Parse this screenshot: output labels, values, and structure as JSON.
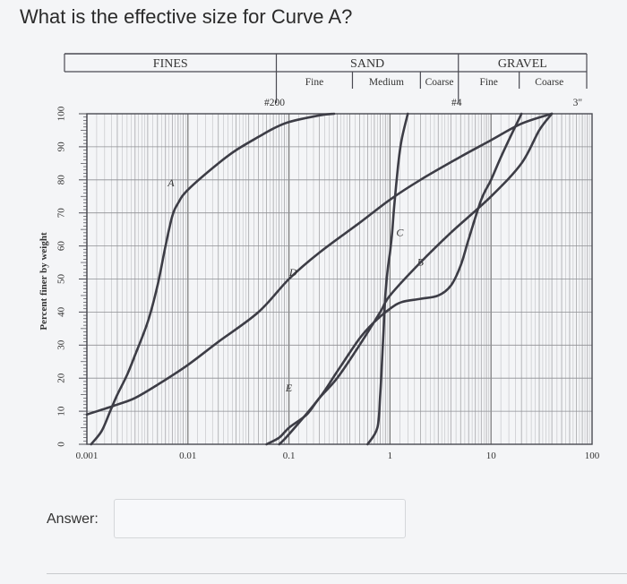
{
  "question": "What is the effective size for Curve A?",
  "answer": {
    "label": "Answer:",
    "value": "",
    "placeholder": ""
  },
  "chart_data": {
    "type": "line",
    "title": "",
    "xlabel": "",
    "ylabel": "Percent finer by weight",
    "x_scale": "log",
    "xlim": [
      0.001,
      100
    ],
    "ylim": [
      0,
      100
    ],
    "x_ticks": [
      {
        "value": 0.001,
        "label": "0.001"
      },
      {
        "value": 0.01,
        "label": "0.01"
      },
      {
        "value": 0.1,
        "label": "0.1"
      },
      {
        "value": 1,
        "label": "1"
      },
      {
        "value": 10,
        "label": "10"
      },
      {
        "value": 100,
        "label": "100"
      }
    ],
    "y_ticks": [
      {
        "value": 0,
        "label": "0"
      },
      {
        "value": 10,
        "label": "10"
      },
      {
        "value": 20,
        "label": "20"
      },
      {
        "value": 30,
        "label": "30"
      },
      {
        "value": 40,
        "label": "40"
      },
      {
        "value": 50,
        "label": "50"
      },
      {
        "value": 60,
        "label": "60"
      },
      {
        "value": 70,
        "label": "70"
      },
      {
        "value": 80,
        "label": "80"
      },
      {
        "value": 90,
        "label": "90"
      },
      {
        "value": 100,
        "label": "100"
      }
    ],
    "grid": true,
    "soil_bands": [
      {
        "label": "FINES",
        "from": 0.001,
        "to": 0.075
      },
      {
        "label": "SAND",
        "from": 0.075,
        "to": 4.75,
        "sub": [
          {
            "label": "Fine",
            "from": 0.075,
            "to": 0.425
          },
          {
            "label": "Medium",
            "from": 0.425,
            "to": 2.0
          },
          {
            "label": "Coarse",
            "from": 2.0,
            "to": 4.75
          }
        ]
      },
      {
        "label": "GRAVEL",
        "from": 4.75,
        "to": 75,
        "sub": [
          {
            "label": "Fine",
            "from": 4.75,
            "to": 19
          },
          {
            "label": "Coarse",
            "from": 19,
            "to": 75
          }
        ]
      }
    ],
    "sieve_marks": [
      {
        "label": "#200",
        "value": 0.075
      },
      {
        "label": "#4",
        "value": 4.75
      },
      {
        "label": "3\"",
        "value": 75
      }
    ],
    "series": [
      {
        "name": "A",
        "label_at": [
          0.0068,
          78
        ],
        "points": [
          [
            0.0011,
            0
          ],
          [
            0.0014,
            4
          ],
          [
            0.0017,
            10
          ],
          [
            0.002,
            15
          ],
          [
            0.0025,
            21
          ],
          [
            0.003,
            27
          ],
          [
            0.004,
            37
          ],
          [
            0.005,
            48
          ],
          [
            0.006,
            60
          ],
          [
            0.007,
            69
          ],
          [
            0.008,
            73
          ],
          [
            0.01,
            77
          ],
          [
            0.02,
            85
          ],
          [
            0.03,
            89
          ],
          [
            0.05,
            93
          ],
          [
            0.07,
            95.5
          ],
          [
            0.1,
            97.5
          ],
          [
            0.2,
            99.5
          ],
          [
            0.28,
            100
          ]
        ]
      },
      {
        "name": "B",
        "label_at": [
          2.0,
          54
        ],
        "points": [
          [
            0.08,
            0
          ],
          [
            0.1,
            3
          ],
          [
            0.2,
            14
          ],
          [
            0.3,
            22
          ],
          [
            0.5,
            32
          ],
          [
            0.7,
            37
          ],
          [
            1.0,
            41
          ],
          [
            1.3,
            43
          ],
          [
            2.0,
            44
          ],
          [
            3.0,
            45
          ],
          [
            4.0,
            48
          ],
          [
            5.0,
            54
          ],
          [
            6.0,
            62
          ],
          [
            8.0,
            74
          ],
          [
            10,
            80
          ],
          [
            13,
            88
          ],
          [
            20,
            100
          ]
        ]
      },
      {
        "name": "C",
        "label_at": [
          1.25,
          63
        ],
        "points": [
          [
            0.6,
            0
          ],
          [
            0.75,
            5
          ],
          [
            0.8,
            15
          ],
          [
            0.85,
            30
          ],
          [
            0.9,
            45
          ],
          [
            0.95,
            53
          ],
          [
            1.0,
            58
          ],
          [
            1.05,
            64
          ],
          [
            1.1,
            72
          ],
          [
            1.2,
            84
          ],
          [
            1.3,
            92
          ],
          [
            1.5,
            100
          ]
        ]
      },
      {
        "name": "D",
        "label_at": [
          0.11,
          51
        ],
        "points": [
          [
            0.001,
            9
          ],
          [
            0.002,
            12
          ],
          [
            0.003,
            14
          ],
          [
            0.005,
            18
          ],
          [
            0.01,
            24
          ],
          [
            0.02,
            31
          ],
          [
            0.05,
            40
          ],
          [
            0.1,
            50
          ],
          [
            0.2,
            58
          ],
          [
            0.5,
            67
          ],
          [
            1,
            74
          ],
          [
            2,
            80
          ],
          [
            5,
            87
          ],
          [
            10,
            92
          ],
          [
            20,
            97
          ],
          [
            40,
            100
          ]
        ]
      },
      {
        "name": "E",
        "label_at": [
          0.1,
          16
        ],
        "points": [
          [
            0.06,
            0
          ],
          [
            0.08,
            2
          ],
          [
            0.1,
            5
          ],
          [
            0.15,
            9
          ],
          [
            0.2,
            14
          ],
          [
            0.3,
            20
          ],
          [
            0.5,
            30
          ],
          [
            0.8,
            40
          ],
          [
            1,
            45
          ],
          [
            2,
            55
          ],
          [
            4,
            64
          ],
          [
            10,
            75
          ],
          [
            20,
            85
          ],
          [
            30,
            95
          ],
          [
            40,
            100
          ]
        ]
      }
    ]
  }
}
